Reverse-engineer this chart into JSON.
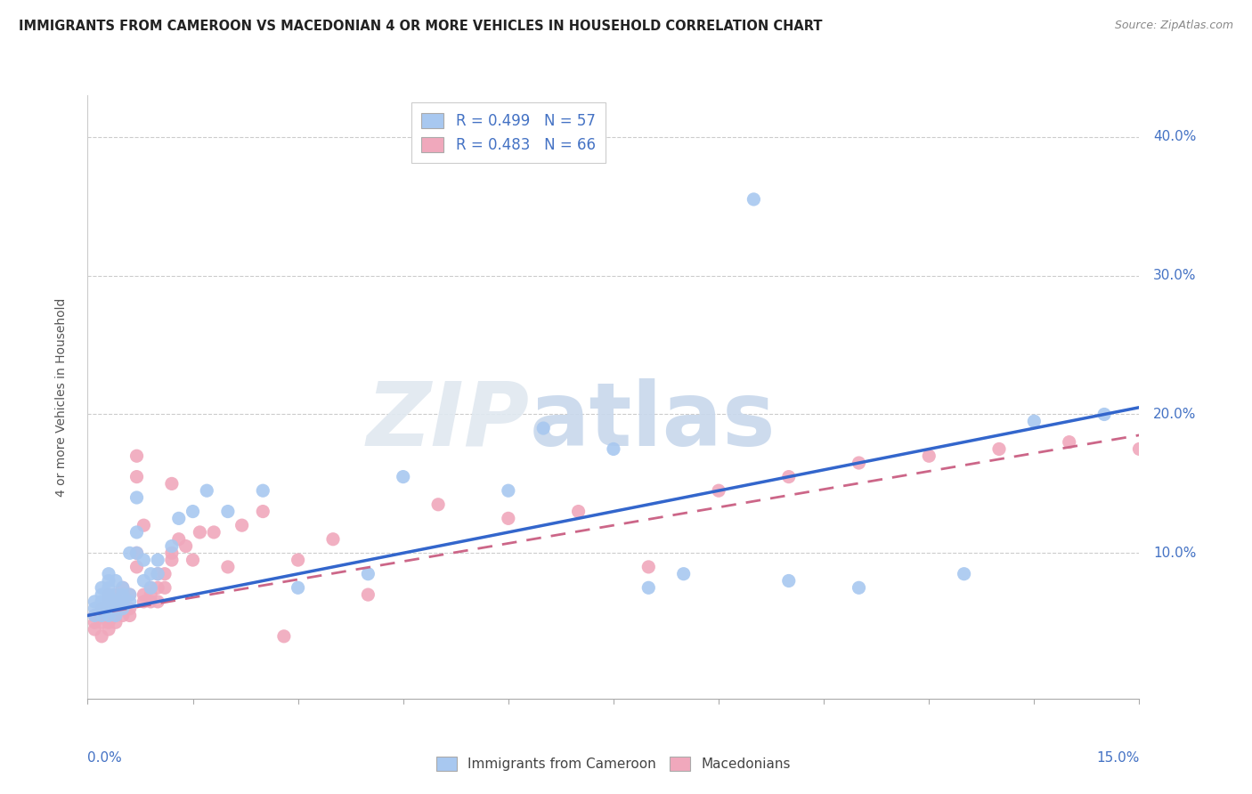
{
  "title": "IMMIGRANTS FROM CAMEROON VS MACEDONIAN 4 OR MORE VEHICLES IN HOUSEHOLD CORRELATION CHART",
  "source": "Source: ZipAtlas.com",
  "ylabel": "4 or more Vehicles in Household",
  "legend_label_blue": "Immigrants from Cameroon",
  "legend_label_pink": "Macedonians",
  "xmin": 0.0,
  "xmax": 0.15,
  "ymin": -0.005,
  "ymax": 0.43,
  "blue_R": 0.499,
  "blue_N": 57,
  "pink_R": 0.483,
  "pink_N": 66,
  "blue_color": "#a8c8f0",
  "pink_color": "#f0a8bc",
  "blue_line_color": "#3366cc",
  "pink_line_color": "#cc6688",
  "ytick_positions": [
    0.1,
    0.2,
    0.3,
    0.4
  ],
  "ytick_labels": [
    "10.0%",
    "20.0%",
    "30.0%",
    "40.0%"
  ],
  "grid_color": "#cccccc",
  "blue_scatter_x": [
    0.001,
    0.001,
    0.001,
    0.002,
    0.002,
    0.002,
    0.002,
    0.002,
    0.003,
    0.003,
    0.003,
    0.003,
    0.003,
    0.003,
    0.003,
    0.004,
    0.004,
    0.004,
    0.004,
    0.004,
    0.005,
    0.005,
    0.005,
    0.005,
    0.006,
    0.006,
    0.006,
    0.007,
    0.007,
    0.007,
    0.008,
    0.008,
    0.009,
    0.009,
    0.01,
    0.01,
    0.012,
    0.013,
    0.015,
    0.017,
    0.02,
    0.025,
    0.03,
    0.04,
    0.045,
    0.06,
    0.065,
    0.075,
    0.08,
    0.085,
    0.095,
    0.1,
    0.11,
    0.125,
    0.135,
    0.145
  ],
  "blue_scatter_y": [
    0.055,
    0.06,
    0.065,
    0.055,
    0.06,
    0.065,
    0.07,
    0.075,
    0.055,
    0.06,
    0.065,
    0.07,
    0.075,
    0.08,
    0.085,
    0.055,
    0.06,
    0.065,
    0.07,
    0.08,
    0.06,
    0.065,
    0.07,
    0.075,
    0.065,
    0.07,
    0.1,
    0.1,
    0.115,
    0.14,
    0.08,
    0.095,
    0.075,
    0.085,
    0.085,
    0.095,
    0.105,
    0.125,
    0.13,
    0.145,
    0.13,
    0.145,
    0.075,
    0.085,
    0.155,
    0.145,
    0.19,
    0.175,
    0.075,
    0.085,
    0.355,
    0.08,
    0.075,
    0.085,
    0.195,
    0.2
  ],
  "pink_scatter_x": [
    0.001,
    0.001,
    0.001,
    0.002,
    0.002,
    0.002,
    0.002,
    0.003,
    0.003,
    0.003,
    0.003,
    0.003,
    0.004,
    0.004,
    0.004,
    0.004,
    0.004,
    0.005,
    0.005,
    0.005,
    0.005,
    0.006,
    0.006,
    0.006,
    0.007,
    0.007,
    0.007,
    0.007,
    0.008,
    0.008,
    0.008,
    0.009,
    0.009,
    0.009,
    0.01,
    0.01,
    0.01,
    0.011,
    0.011,
    0.012,
    0.012,
    0.012,
    0.013,
    0.014,
    0.015,
    0.016,
    0.018,
    0.02,
    0.022,
    0.025,
    0.028,
    0.03,
    0.035,
    0.04,
    0.05,
    0.06,
    0.07,
    0.08,
    0.09,
    0.1,
    0.11,
    0.12,
    0.13,
    0.14,
    0.15
  ],
  "pink_scatter_y": [
    0.045,
    0.05,
    0.055,
    0.04,
    0.05,
    0.055,
    0.06,
    0.045,
    0.05,
    0.055,
    0.065,
    0.07,
    0.05,
    0.055,
    0.06,
    0.065,
    0.07,
    0.055,
    0.06,
    0.065,
    0.075,
    0.055,
    0.06,
    0.07,
    0.09,
    0.1,
    0.155,
    0.17,
    0.065,
    0.07,
    0.12,
    0.065,
    0.07,
    0.075,
    0.065,
    0.075,
    0.085,
    0.075,
    0.085,
    0.095,
    0.1,
    0.15,
    0.11,
    0.105,
    0.095,
    0.115,
    0.115,
    0.09,
    0.12,
    0.13,
    0.04,
    0.095,
    0.11,
    0.07,
    0.135,
    0.125,
    0.13,
    0.09,
    0.145,
    0.155,
    0.165,
    0.17,
    0.175,
    0.18,
    0.175
  ]
}
